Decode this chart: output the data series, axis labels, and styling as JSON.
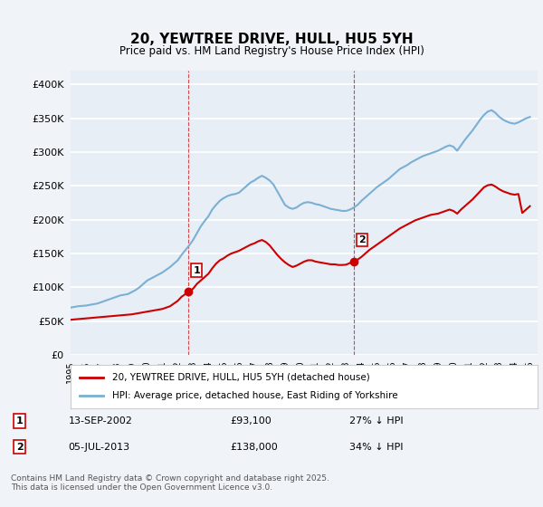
{
  "title": "20, YEWTREE DRIVE, HULL, HU5 5YH",
  "subtitle": "Price paid vs. HM Land Registry's House Price Index (HPI)",
  "ylabel_format": "£{0}K",
  "ylim": [
    0,
    420000
  ],
  "yticks": [
    0,
    50000,
    100000,
    150000,
    200000,
    250000,
    300000,
    350000,
    400000
  ],
  "xlim_start": 1995.0,
  "xlim_end": 2025.5,
  "background_color": "#f0f4f8",
  "plot_bg_color": "#e8eef5",
  "grid_color": "#ffffff",
  "red_line_color": "#cc0000",
  "blue_line_color": "#7ab0d4",
  "legend_label_red": "20, YEWTREE DRIVE, HULL, HU5 5YH (detached house)",
  "legend_label_blue": "HPI: Average price, detached house, East Riding of Yorkshire",
  "sale1_date": "13-SEP-2002",
  "sale1_price": "£93,100",
  "sale1_hpi": "27% ↓ HPI",
  "sale1_x": 2002.71,
  "sale1_y": 93100,
  "sale2_date": "05-JUL-2013",
  "sale2_price": "£138,000",
  "sale2_hpi": "34% ↓ HPI",
  "sale2_x": 2013.51,
  "sale2_y": 138000,
  "footnote": "Contains HM Land Registry data © Crown copyright and database right 2025.\nThis data is licensed under the Open Government Licence v3.0.",
  "hpi_data_x": [
    1995.0,
    1995.25,
    1995.5,
    1995.75,
    1996.0,
    1996.25,
    1996.5,
    1996.75,
    1997.0,
    1997.25,
    1997.5,
    1997.75,
    1998.0,
    1998.25,
    1998.5,
    1998.75,
    1999.0,
    1999.25,
    1999.5,
    1999.75,
    2000.0,
    2000.25,
    2000.5,
    2000.75,
    2001.0,
    2001.25,
    2001.5,
    2001.75,
    2002.0,
    2002.25,
    2002.5,
    2002.75,
    2003.0,
    2003.25,
    2003.5,
    2003.75,
    2004.0,
    2004.25,
    2004.5,
    2004.75,
    2005.0,
    2005.25,
    2005.5,
    2005.75,
    2006.0,
    2006.25,
    2006.5,
    2006.75,
    2007.0,
    2007.25,
    2007.5,
    2007.75,
    2008.0,
    2008.25,
    2008.5,
    2008.75,
    2009.0,
    2009.25,
    2009.5,
    2009.75,
    2010.0,
    2010.25,
    2010.5,
    2010.75,
    2011.0,
    2011.25,
    2011.5,
    2011.75,
    2012.0,
    2012.25,
    2012.5,
    2012.75,
    2013.0,
    2013.25,
    2013.5,
    2013.75,
    2014.0,
    2014.25,
    2014.5,
    2014.75,
    2015.0,
    2015.25,
    2015.5,
    2015.75,
    2016.0,
    2016.25,
    2016.5,
    2016.75,
    2017.0,
    2017.25,
    2017.5,
    2017.75,
    2018.0,
    2018.25,
    2018.5,
    2018.75,
    2019.0,
    2019.25,
    2019.5,
    2019.75,
    2020.0,
    2020.25,
    2020.5,
    2020.75,
    2021.0,
    2021.25,
    2021.5,
    2021.75,
    2022.0,
    2022.25,
    2022.5,
    2022.75,
    2023.0,
    2023.25,
    2023.5,
    2023.75,
    2024.0,
    2024.25,
    2024.5,
    2024.75,
    2025.0
  ],
  "hpi_data_y": [
    70000,
    71000,
    72000,
    72500,
    73000,
    74000,
    75000,
    76000,
    78000,
    80000,
    82000,
    84000,
    86000,
    88000,
    89000,
    90000,
    93000,
    96000,
    100000,
    105000,
    110000,
    113000,
    116000,
    119000,
    122000,
    126000,
    130000,
    135000,
    140000,
    148000,
    155000,
    162000,
    170000,
    180000,
    190000,
    198000,
    205000,
    215000,
    222000,
    228000,
    232000,
    235000,
    237000,
    238000,
    240000,
    245000,
    250000,
    255000,
    258000,
    262000,
    265000,
    262000,
    258000,
    252000,
    242000,
    232000,
    222000,
    218000,
    216000,
    218000,
    222000,
    225000,
    226000,
    225000,
    223000,
    222000,
    220000,
    218000,
    216000,
    215000,
    214000,
    213000,
    213000,
    215000,
    218000,
    222000,
    228000,
    233000,
    238000,
    243000,
    248000,
    252000,
    256000,
    260000,
    265000,
    270000,
    275000,
    278000,
    281000,
    285000,
    288000,
    291000,
    294000,
    296000,
    298000,
    300000,
    302000,
    305000,
    308000,
    310000,
    308000,
    302000,
    310000,
    318000,
    325000,
    332000,
    340000,
    348000,
    355000,
    360000,
    362000,
    358000,
    352000,
    348000,
    345000,
    343000,
    342000,
    344000,
    347000,
    350000,
    352000
  ],
  "red_data_x": [
    1995.0,
    1995.25,
    1995.5,
    1995.75,
    1996.0,
    1996.25,
    1996.5,
    1996.75,
    1997.0,
    1997.25,
    1997.5,
    1997.75,
    1998.0,
    1998.25,
    1998.5,
    1998.75,
    1999.0,
    1999.25,
    1999.5,
    1999.75,
    2000.0,
    2000.25,
    2000.5,
    2000.75,
    2001.0,
    2001.25,
    2001.5,
    2001.75,
    2002.0,
    2002.25,
    2002.5,
    2002.75,
    2003.0,
    2003.25,
    2003.5,
    2003.75,
    2004.0,
    2004.25,
    2004.5,
    2004.75,
    2005.0,
    2005.25,
    2005.5,
    2005.75,
    2006.0,
    2006.25,
    2006.5,
    2006.75,
    2007.0,
    2007.25,
    2007.5,
    2007.75,
    2008.0,
    2008.25,
    2008.5,
    2008.75,
    2009.0,
    2009.25,
    2009.5,
    2009.75,
    2010.0,
    2010.25,
    2010.5,
    2010.75,
    2011.0,
    2011.25,
    2011.5,
    2011.75,
    2012.0,
    2012.25,
    2012.5,
    2012.75,
    2013.0,
    2013.25,
    2013.5,
    2013.75,
    2014.0,
    2014.25,
    2014.5,
    2014.75,
    2015.0,
    2015.25,
    2015.5,
    2015.75,
    2016.0,
    2016.25,
    2016.5,
    2016.75,
    2017.0,
    2017.25,
    2017.5,
    2017.75,
    2018.0,
    2018.25,
    2018.5,
    2018.75,
    2019.0,
    2019.25,
    2019.5,
    2019.75,
    2020.0,
    2020.25,
    2020.5,
    2020.75,
    2021.0,
    2021.25,
    2021.5,
    2021.75,
    2022.0,
    2022.25,
    2022.5,
    2022.75,
    2023.0,
    2023.25,
    2023.5,
    2023.75,
    2024.0,
    2024.25,
    2024.5,
    2024.75,
    2025.0
  ],
  "red_data_y": [
    52000,
    52500,
    53000,
    53500,
    54000,
    54500,
    55000,
    55500,
    56000,
    56500,
    57000,
    57500,
    58000,
    58500,
    59000,
    59500,
    60000,
    61000,
    62000,
    63000,
    64000,
    65000,
    66000,
    67000,
    68000,
    70000,
    72000,
    76000,
    80000,
    86000,
    90000,
    93100,
    98000,
    105000,
    110000,
    115000,
    120000,
    128000,
    135000,
    140000,
    143000,
    147000,
    150000,
    152000,
    154000,
    157000,
    160000,
    163000,
    165000,
    168000,
    170000,
    167000,
    162000,
    155000,
    148000,
    142000,
    137000,
    133000,
    130000,
    132000,
    135000,
    138000,
    140000,
    140000,
    138000,
    137000,
    136000,
    135000,
    134000,
    134000,
    133000,
    133000,
    133500,
    136000,
    138000,
    141000,
    145000,
    150000,
    155000,
    159000,
    163000,
    167000,
    171000,
    175000,
    179000,
    183000,
    187000,
    190000,
    193000,
    196000,
    199000,
    201000,
    203000,
    205000,
    207000,
    208000,
    209000,
    211000,
    213000,
    215000,
    213000,
    209000,
    215000,
    220000,
    225000,
    230000,
    236000,
    242000,
    248000,
    251000,
    252000,
    249000,
    245000,
    242000,
    240000,
    238000,
    237000,
    238000,
    210000,
    215000,
    220000
  ]
}
